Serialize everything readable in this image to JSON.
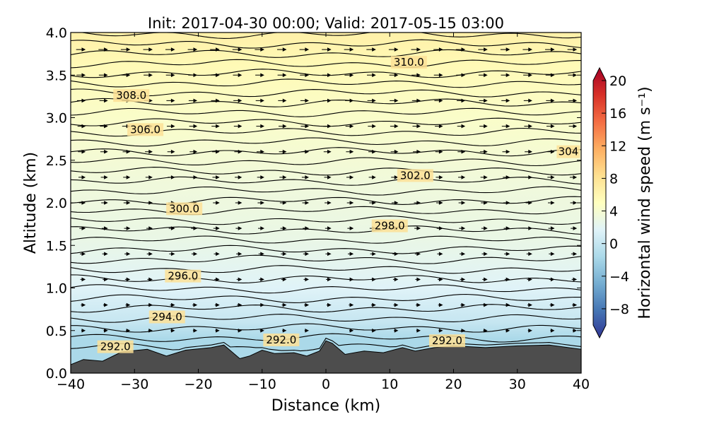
{
  "chart_data": {
    "type": "heatmap",
    "title": "Init: 2017-04-30 00:00; Valid: 2017-05-15 03:00",
    "xlabel": "Distance (km)",
    "ylabel": "Altitude (km)",
    "xlim": [
      -40,
      40
    ],
    "ylim": [
      0.0,
      4.0
    ],
    "x_ticks": [
      "−40",
      "−30",
      "−20",
      "−10",
      "0",
      "10",
      "20",
      "30",
      "40"
    ],
    "y_ticks": [
      "0.0",
      "0.5",
      "1.0",
      "1.5",
      "2.0",
      "2.5",
      "3.0",
      "3.5",
      "4.0"
    ],
    "colorbar": {
      "label": "Horizontal wind speed (m s⁻¹)",
      "range": [
        -10,
        20
      ],
      "ticks": [
        "−8",
        "−4",
        "0",
        "4",
        "8",
        "12",
        "16",
        "20"
      ],
      "colors": [
        "#313695",
        "#4575b4",
        "#74add1",
        "#abd9e9",
        "#e0f3f8",
        "#ffffbf",
        "#fee090",
        "#fdae61",
        "#f46d43",
        "#d73027",
        "#a50026"
      ]
    },
    "wind_field_rows": [
      {
        "z": 0.0,
        "speed": -1
      },
      {
        "z": 0.4,
        "speed": -1
      },
      {
        "z": 0.6,
        "speed": 0.5
      },
      {
        "z": 1.0,
        "speed": 2
      },
      {
        "z": 1.6,
        "speed": 3
      },
      {
        "z": 2.2,
        "speed": 3.5
      },
      {
        "z": 3.0,
        "speed": 4.5
      },
      {
        "z": 3.6,
        "speed": 5.5
      },
      {
        "z": 4.0,
        "speed": 6.5
      }
    ],
    "contour_labels": [
      {
        "text": "310.0",
        "x": 13,
        "z": 3.65
      },
      {
        "text": "308.0",
        "x": -30.5,
        "z": 3.26
      },
      {
        "text": "306.0",
        "x": -28.3,
        "z": 2.86
      },
      {
        "text": "304",
        "x": 38,
        "z": 2.6
      },
      {
        "text": "302.0",
        "x": 14,
        "z": 2.32
      },
      {
        "text": "300.0",
        "x": -22.2,
        "z": 1.93
      },
      {
        "text": "298.0",
        "x": 10,
        "z": 1.73
      },
      {
        "text": "296.0",
        "x": -22.4,
        "z": 1.14
      },
      {
        "text": "294.0",
        "x": -24.9,
        "z": 0.66
      },
      {
        "text": "292.0",
        "x": -33,
        "z": 0.31
      },
      {
        "text": "292.0",
        "x": -7,
        "z": 0.39
      },
      {
        "text": "292.0",
        "x": 19,
        "z": 0.38
      }
    ],
    "terrain": [
      {
        "x": -40,
        "z": 0.1
      },
      {
        "x": -38,
        "z": 0.16
      },
      {
        "x": -35,
        "z": 0.14
      },
      {
        "x": -32,
        "z": 0.25
      },
      {
        "x": -28,
        "z": 0.28
      },
      {
        "x": -25,
        "z": 0.2
      },
      {
        "x": -22,
        "z": 0.27
      },
      {
        "x": -18,
        "z": 0.3
      },
      {
        "x": -16,
        "z": 0.33
      },
      {
        "x": -13.5,
        "z": 0.17
      },
      {
        "x": -12,
        "z": 0.2
      },
      {
        "x": -10,
        "z": 0.27
      },
      {
        "x": -8,
        "z": 0.23
      },
      {
        "x": -5,
        "z": 0.24
      },
      {
        "x": -3,
        "z": 0.2
      },
      {
        "x": -1,
        "z": 0.26
      },
      {
        "x": 0,
        "z": 0.38
      },
      {
        "x": 1,
        "z": 0.35
      },
      {
        "x": 3,
        "z": 0.22
      },
      {
        "x": 6,
        "z": 0.26
      },
      {
        "x": 9,
        "z": 0.24
      },
      {
        "x": 12,
        "z": 0.3
      },
      {
        "x": 14,
        "z": 0.26
      },
      {
        "x": 17,
        "z": 0.3
      },
      {
        "x": 20,
        "z": 0.32
      },
      {
        "x": 25,
        "z": 0.3
      },
      {
        "x": 30,
        "z": 0.32
      },
      {
        "x": 35,
        "z": 0.33
      },
      {
        "x": 38,
        "z": 0.3
      },
      {
        "x": 40,
        "z": 0.28
      }
    ]
  }
}
